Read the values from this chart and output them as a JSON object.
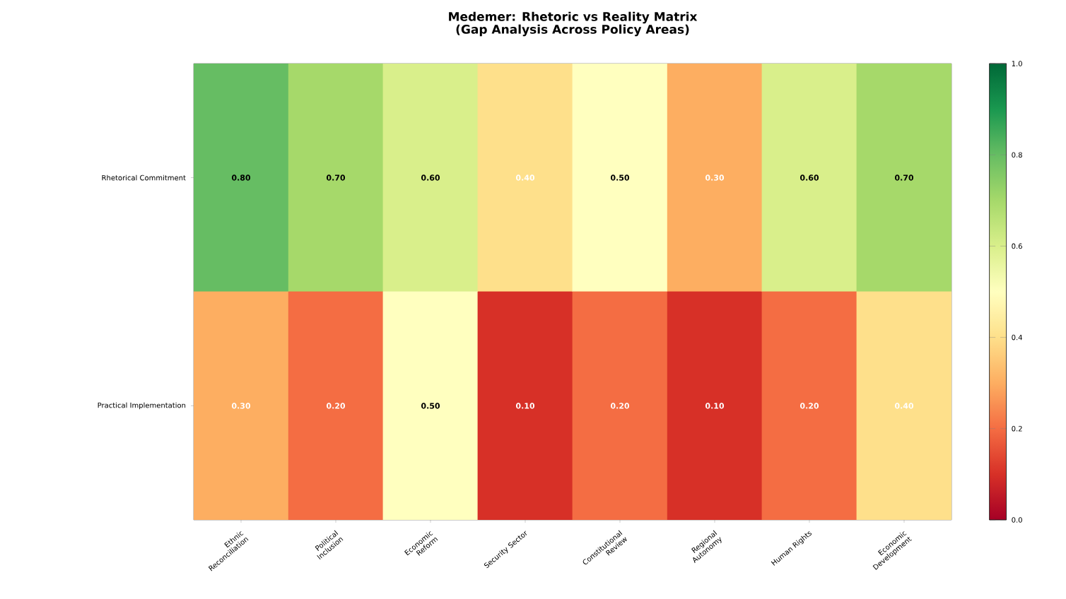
{
  "chart_data": {
    "type": "heatmap",
    "title": "Medemer: Rhetoric vs Reality Matrix\n(Gap Analysis Across Policy Areas)",
    "categories": [
      "Ethnic Reconciliation",
      "Political Inclusion",
      "Economic Reform",
      "Security Sector",
      "Constitutional Review",
      "Regional Autonomy",
      "Human Rights",
      "Economic Development"
    ],
    "y_categories": [
      "Rhetorical Commitment",
      "Practical Implementation"
    ],
    "cells": [
      [
        0.8,
        0.7,
        0.6,
        0.4,
        0.5,
        0.3,
        0.6,
        0.7
      ],
      [
        0.3,
        0.2,
        0.5,
        0.1,
        0.2,
        0.1,
        0.2,
        0.4
      ]
    ],
    "cell_labels": [
      [
        "0.80",
        "0.70",
        "0.60",
        "0.40",
        "0.50",
        "0.30",
        "0.60",
        "0.70"
      ],
      [
        "0.30",
        "0.20",
        "0.50",
        "0.10",
        "0.20",
        "0.10",
        "0.20",
        "0.40"
      ]
    ],
    "data_labels": true,
    "clim": [
      0,
      1
    ],
    "cticks": [
      {
        "value": 0,
        "label": "0.0"
      },
      {
        "value": 0.2,
        "label": "0.2"
      },
      {
        "value": 0.4,
        "label": "0.4"
      },
      {
        "value": 0.6,
        "label": "0.6"
      },
      {
        "value": 0.8,
        "label": "0.8"
      },
      {
        "value": 1,
        "label": "1.0"
      }
    ]
  }
}
